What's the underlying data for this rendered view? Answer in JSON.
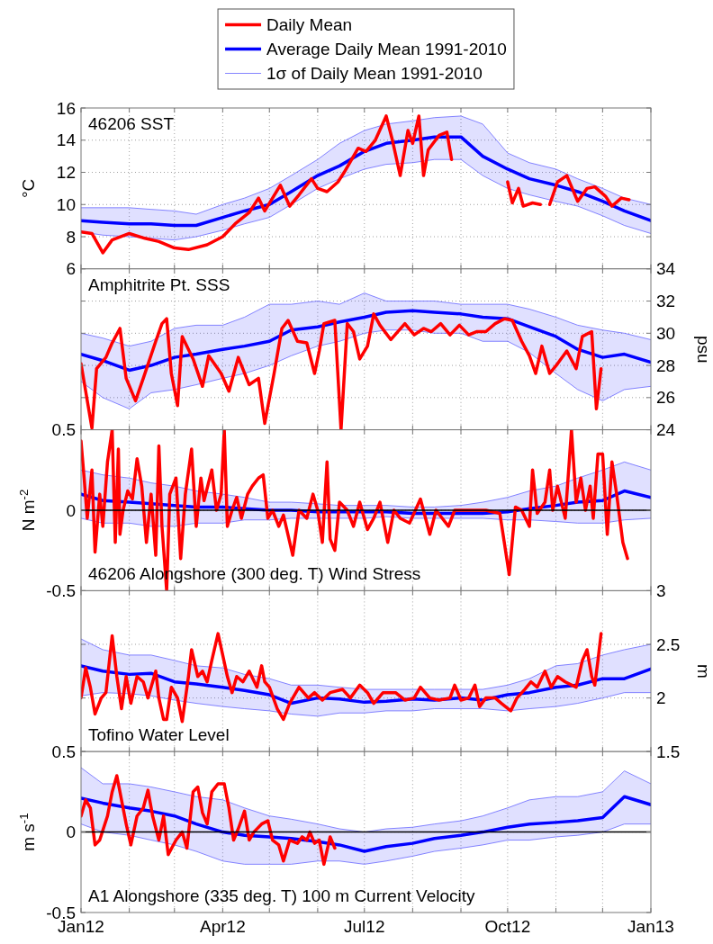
{
  "chart_data": [
    {
      "type": "line",
      "title": "46206 SST",
      "ylabel": "°C",
      "legend": "top",
      "grid": true,
      "tick_labels": "y",
      "xlim": [
        "2012-01-01",
        "2013-01-01"
      ],
      "xticks": [
        {
          "value": "2012-01-01",
          "label": null
        },
        {
          "value": "2012-02-01",
          "label": null
        },
        {
          "value": "2012-03-01",
          "label": null
        },
        {
          "value": "2012-04-01",
          "label": null
        },
        {
          "value": "2012-05-01",
          "label": null
        },
        {
          "value": "2012-06-01",
          "label": null
        },
        {
          "value": "2012-07-01",
          "label": null
        },
        {
          "value": "2012-08-01",
          "label": null
        },
        {
          "value": "2012-09-01",
          "label": null
        },
        {
          "value": "2012-10-01",
          "label": null
        },
        {
          "value": "2012-11-01",
          "label": null
        },
        {
          "value": "2012-12-01",
          "label": null
        },
        {
          "value": "2013-01-01",
          "label": null
        }
      ],
      "ylim": [
        6,
        16
      ],
      "yticks": [
        6,
        8,
        10,
        12,
        14,
        16
      ],
      "x": [
        "2012-01-01",
        "2012-01-15",
        "2012-02-01",
        "2012-02-15",
        "2012-03-01",
        "2012-03-15",
        "2012-04-01",
        "2012-04-15",
        "2012-05-01",
        "2012-05-15",
        "2012-06-01",
        "2012-06-15",
        "2012-07-01",
        "2012-07-15",
        "2012-08-01",
        "2012-08-15",
        "2012-09-01",
        "2012-09-15",
        "2012-10-01",
        "2012-10-15",
        "2012-11-01",
        "2012-11-15",
        "2012-12-01",
        "2012-12-15",
        "2013-01-01"
      ],
      "series": [
        {
          "name": "Daily Mean",
          "color": "#ff0000",
          "x": [
            "2012-01-01",
            "2012-01-08",
            "2012-01-15",
            "2012-01-21",
            "2012-02-01",
            "2012-02-11",
            "2012-02-20",
            "2012-03-01",
            "2012-03-10",
            "2012-03-22",
            "2012-04-01",
            "2012-04-09",
            "2012-04-18",
            "2012-04-24",
            "2012-04-28",
            "2012-05-08",
            "2012-05-14",
            "2012-05-20",
            "2012-05-28",
            "2012-06-01",
            "2012-06-07",
            "2012-06-14",
            "2012-06-18",
            "2012-06-27",
            "2012-07-02",
            "2012-07-08",
            "2012-07-15",
            "2012-07-19",
            "2012-07-24",
            "2012-07-29",
            "2012-08-01",
            "2012-08-05",
            "2012-08-08",
            "2012-08-11",
            "2012-08-18",
            "2012-08-23",
            "2012-08-26",
            "2012-09-15",
            "2012-10-01",
            "2012-10-04",
            "2012-10-08",
            "2012-10-11",
            "2012-10-17",
            "2012-10-22",
            "2012-10-25",
            "2012-10-28",
            "2012-11-02",
            "2012-11-08",
            "2012-11-15",
            "2012-11-21",
            "2012-11-26",
            "2012-12-03",
            "2012-12-07",
            "2012-12-13",
            "2012-12-18"
          ],
          "values": [
            8.3,
            8.2,
            7.0,
            7.8,
            8.2,
            7.9,
            7.7,
            7.3,
            7.2,
            7.5,
            8.0,
            8.8,
            9.5,
            10.4,
            9.6,
            11.2,
            9.9,
            10.6,
            11.6,
            11.0,
            10.8,
            11.4,
            12.0,
            13.5,
            13.3,
            14.0,
            15.5,
            14.0,
            11.8,
            14.6,
            13.8,
            15.5,
            11.8,
            13.4,
            14.3,
            14.5,
            12.8,
            null,
            11.4,
            10.1,
            11.0,
            9.9,
            10.1,
            10.0,
            null,
            10.0,
            11.4,
            11.8,
            10.2,
            11.0,
            11.1,
            10.5,
            9.9,
            10.4,
            10.3
          ]
        },
        {
          "name": "Average Daily Mean 1991-2010",
          "color": "#0000ff",
          "values": [
            9.0,
            8.9,
            8.8,
            8.8,
            8.7,
            8.7,
            9.2,
            9.6,
            10.0,
            10.8,
            11.8,
            12.4,
            13.3,
            13.8,
            14.0,
            14.2,
            14.2,
            13.0,
            12.2,
            11.6,
            11.2,
            10.8,
            10.2,
            9.6,
            9.0
          ],
          "upper": [
            9.8,
            9.8,
            9.8,
            9.7,
            9.6,
            9.4,
            10.0,
            10.4,
            11.0,
            11.8,
            12.8,
            13.8,
            14.6,
            15.0,
            15.2,
            15.4,
            15.5,
            15.0,
            13.2,
            12.6,
            12.2,
            11.6,
            11.0,
            10.4,
            10.0
          ],
          "lower": [
            8.3,
            8.1,
            8.0,
            7.9,
            7.8,
            8.0,
            8.4,
            8.8,
            9.2,
            10.0,
            11.0,
            11.6,
            12.2,
            12.5,
            12.6,
            12.8,
            12.8,
            11.8,
            11.0,
            10.6,
            10.2,
            9.9,
            9.3,
            8.7,
            8.2
          ]
        },
        {
          "name": "1σ of Daily Mean 1991-2010",
          "color": "#6666ff",
          "values": [
            9.8,
            9.8,
            9.8,
            9.7,
            9.6,
            9.4,
            10.0,
            10.4,
            11.0,
            11.8,
            12.8,
            13.8,
            14.6,
            15.0,
            15.2,
            15.4,
            15.5,
            15.0,
            13.2,
            12.6,
            12.2,
            11.6,
            11.0,
            10.4,
            10.0
          ]
        },
        {
          "color": "#6666ff",
          "values": [
            8.3,
            8.1,
            8.0,
            7.9,
            7.8,
            8.0,
            8.4,
            8.8,
            9.2,
            10.0,
            11.0,
            11.6,
            12.2,
            12.5,
            12.6,
            12.8,
            12.8,
            11.8,
            11.0,
            10.6,
            10.2,
            9.9,
            9.3,
            8.7,
            8.2
          ]
        }
      ]
    },
    {
      "type": "line",
      "title": "Amphitrite Pt. SSS",
      "ylabel": "psu",
      "grid": true,
      "tick_labels": "y",
      "xlim": [
        "2012-01-01",
        "2013-01-01"
      ],
      "xticks": [
        {
          "value": "2012-01-01",
          "label": null
        },
        {
          "value": "2012-02-01",
          "label": null
        },
        {
          "value": "2012-03-01",
          "label": null
        },
        {
          "value": "2012-04-01",
          "label": null
        },
        {
          "value": "2012-05-01",
          "label": null
        },
        {
          "value": "2012-06-01",
          "label": null
        },
        {
          "value": "2012-07-01",
          "label": null
        },
        {
          "value": "2012-08-01",
          "label": null
        },
        {
          "value": "2012-09-01",
          "label": null
        },
        {
          "value": "2012-10-01",
          "label": null
        },
        {
          "value": "2012-11-01",
          "label": null
        },
        {
          "value": "2012-12-01",
          "label": null
        },
        {
          "value": "2013-01-01",
          "label": null
        }
      ],
      "ylim": [
        24,
        34
      ],
      "yticks": [
        24,
        26,
        28,
        30,
        32,
        34
      ],
      "x": [
        "2012-01-01",
        "2012-01-15",
        "2012-02-01",
        "2012-02-15",
        "2012-03-01",
        "2012-03-15",
        "2012-04-01",
        "2012-04-15",
        "2012-05-01",
        "2012-05-15",
        "2012-06-01",
        "2012-06-15",
        "2012-07-01",
        "2012-07-15",
        "2012-08-01",
        "2012-08-15",
        "2012-09-01",
        "2012-09-15",
        "2012-10-01",
        "2012-10-15",
        "2012-11-01",
        "2012-11-15",
        "2012-12-01",
        "2012-12-15",
        "2013-01-01"
      ],
      "series": [
        {
          "color": "#ff0000",
          "x": [
            "2012-01-01",
            "2012-01-04",
            "2012-01-08",
            "2012-01-11",
            "2012-01-17",
            "2012-01-21",
            "2012-01-26",
            "2012-01-30",
            "2012-02-05",
            "2012-02-10",
            "2012-02-18",
            "2012-02-22",
            "2012-02-25",
            "2012-02-28",
            "2012-03-03",
            "2012-03-06",
            "2012-03-13",
            "2012-03-19",
            "2012-03-23",
            "2012-03-31",
            "2012-04-05",
            "2012-04-11",
            "2012-04-18",
            "2012-04-24",
            "2012-04-28",
            "2012-05-04",
            "2012-05-09",
            "2012-05-13",
            "2012-05-19",
            "2012-05-25",
            "2012-05-30",
            "2012-06-02",
            "2012-06-05",
            "2012-06-12",
            "2012-06-16",
            "2012-06-20",
            "2012-06-24",
            "2012-06-28",
            "2012-07-03",
            "2012-07-07",
            "2012-07-11",
            "2012-07-18",
            "2012-07-27",
            "2012-08-02",
            "2012-08-08",
            "2012-08-13",
            "2012-08-19",
            "2012-08-25",
            "2012-08-31",
            "2012-09-06",
            "2012-09-11",
            "2012-09-17",
            "2012-09-23",
            "2012-09-29",
            "2012-10-04",
            "2012-10-10",
            "2012-10-15",
            "2012-10-19",
            "2012-10-23",
            "2012-10-28",
            "2012-11-02",
            "2012-11-08",
            "2012-11-14",
            "2012-11-18",
            "2012-11-24",
            "2012-11-27",
            "2012-11-30"
          ],
          "values": [
            28.1,
            26.4,
            24.1,
            27.8,
            28.5,
            29.4,
            30.3,
            27.2,
            25.8,
            27.2,
            29.5,
            30.6,
            30.9,
            27.5,
            25.5,
            29.8,
            28.4,
            26.7,
            28.6,
            27.5,
            26.4,
            28.5,
            26.8,
            27.2,
            24.4,
            27.5,
            30.3,
            30.8,
            29.5,
            29.4,
            27.5,
            28.9,
            30.6,
            30.8,
            24.0,
            30.6,
            30.1,
            28.4,
            29.2,
            31.2,
            30.5,
            29.6,
            30.6,
            29.9,
            30.3,
            30.1,
            30.6,
            29.9,
            30.5,
            29.9,
            30.1,
            30.1,
            30.6,
            30.9,
            30.8,
            29.5,
            28.6,
            27.5,
            29.2,
            27.5,
            28.1,
            28.9,
            27.8,
            29.8,
            30.1,
            25.3,
            27.8
          ]
        },
        {
          "color": "#0000ff",
          "values": [
            28.7,
            28.3,
            27.7,
            28.0,
            28.5,
            28.7,
            29.0,
            29.2,
            29.5,
            30.2,
            30.4,
            30.7,
            31.0,
            31.3,
            31.4,
            31.3,
            31.2,
            31.0,
            30.9,
            30.4,
            29.8,
            29.0,
            28.5,
            28.7,
            28.2
          ],
          "upper": [
            30.0,
            29.7,
            29.2,
            29.5,
            30.3,
            30.5,
            30.5,
            31.0,
            31.8,
            31.8,
            32.0,
            31.8,
            32.5,
            32.0,
            32.0,
            32.0,
            31.8,
            31.8,
            31.8,
            31.5,
            31.0,
            30.5,
            30.2,
            30.0,
            29.6
          ],
          "lower": [
            27.0,
            26.0,
            25.3,
            26.3,
            26.5,
            26.8,
            27.2,
            27.5,
            28.0,
            28.6,
            29.2,
            29.5,
            30.0,
            30.2,
            30.2,
            30.0,
            30.0,
            29.5,
            29.5,
            28.8,
            27.5,
            26.5,
            25.8,
            26.5,
            26.7
          ]
        },
        {
          "color": "#6666ff",
          "values": [
            30.0,
            29.7,
            29.2,
            29.5,
            30.3,
            30.5,
            30.5,
            31.0,
            31.8,
            31.8,
            32.0,
            31.8,
            32.5,
            32.0,
            32.0,
            32.0,
            31.8,
            31.8,
            31.8,
            31.5,
            31.0,
            30.5,
            30.2,
            30.0,
            29.6
          ]
        },
        {
          "color": "#6666ff",
          "values": [
            27.0,
            26.0,
            25.3,
            26.3,
            26.5,
            26.8,
            27.2,
            27.5,
            28.0,
            28.6,
            29.2,
            29.5,
            30.0,
            30.2,
            30.2,
            30.0,
            30.0,
            29.5,
            29.5,
            28.8,
            27.5,
            26.5,
            25.8,
            26.5,
            26.7
          ]
        }
      ]
    },
    {
      "type": "line",
      "title": "46206 Alongshore (300 deg. T) Wind Stress",
      "ylabel": "N m$^{-2}$",
      "grid": true,
      "tick_labels": "y",
      "xlim": [
        "2012-01-01",
        "2013-01-01"
      ],
      "xticks": [
        {
          "value": "2012-01-01",
          "label": null
        },
        {
          "value": "2012-02-01",
          "label": null
        },
        {
          "value": "2012-03-01",
          "label": null
        },
        {
          "value": "2012-04-01",
          "label": null
        },
        {
          "value": "2012-05-01",
          "label": null
        },
        {
          "value": "2012-06-01",
          "label": null
        },
        {
          "value": "2012-07-01",
          "label": null
        },
        {
          "value": "2012-08-01",
          "label": null
        },
        {
          "value": "2012-09-01",
          "label": null
        },
        {
          "value": "2012-10-01",
          "label": null
        },
        {
          "value": "2012-11-01",
          "label": null
        },
        {
          "value": "2012-12-01",
          "label": null
        },
        {
          "value": "2013-01-01",
          "label": null
        }
      ],
      "ylim": [
        -0.5,
        0.5
      ],
      "yticks": [
        -0.5,
        0,
        0.5
      ],
      "ref_lines": [
        {
          "axis": "y",
          "value": 0,
          "color": "#000000"
        }
      ],
      "x": [
        "2012-01-01",
        "2012-01-15",
        "2012-02-01",
        "2012-02-15",
        "2012-03-01",
        "2012-03-15",
        "2012-04-01",
        "2012-04-15",
        "2012-05-01",
        "2012-05-15",
        "2012-06-01",
        "2012-06-15",
        "2012-07-01",
        "2012-07-15",
        "2012-08-01",
        "2012-08-15",
        "2012-09-01",
        "2012-09-15",
        "2012-10-01",
        "2012-10-15",
        "2012-11-01",
        "2012-11-15",
        "2012-12-01",
        "2012-12-15",
        "2013-01-01"
      ],
      "series": [
        {
          "color": "#ff0000",
          "x": [
            "2012-01-01",
            "2012-01-03",
            "2012-01-05",
            "2012-01-08",
            "2012-01-10",
            "2012-01-13",
            "2012-01-15",
            "2012-01-18",
            "2012-01-21",
            "2012-01-23",
            "2012-01-25",
            "2012-01-26",
            "2012-01-28",
            "2012-01-31",
            "2012-02-03",
            "2012-02-06",
            "2012-02-09",
            "2012-02-12",
            "2012-02-15",
            "2012-02-18",
            "2012-02-20",
            "2012-02-22",
            "2012-02-25",
            "2012-02-27",
            "2012-03-02",
            "2012-03-05",
            "2012-03-08",
            "2012-03-12",
            "2012-03-15",
            "2012-03-18",
            "2012-03-20",
            "2012-03-25",
            "2012-03-28",
            "2012-03-31",
            "2012-04-02",
            "2012-04-04",
            "2012-04-07",
            "2012-04-10",
            "2012-04-13",
            "2012-04-17",
            "2012-04-20",
            "2012-04-24",
            "2012-04-27",
            "2012-04-30",
            "2012-05-03",
            "2012-05-07",
            "2012-05-10",
            "2012-05-16",
            "2012-05-20",
            "2012-05-25",
            "2012-05-29",
            "2012-06-01",
            "2012-06-04",
            "2012-06-07",
            "2012-06-09",
            "2012-06-12",
            "2012-06-15",
            "2012-06-20",
            "2012-06-24",
            "2012-06-28",
            "2012-07-03",
            "2012-07-07",
            "2012-07-11",
            "2012-07-16",
            "2012-07-20",
            "2012-07-24",
            "2012-07-30",
            "2012-08-06",
            "2012-08-12",
            "2012-08-16",
            "2012-08-24",
            "2012-08-28",
            "2012-09-06",
            "2012-09-17",
            "2012-09-26",
            "2012-10-02",
            "2012-10-06",
            "2012-10-10",
            "2012-10-15",
            "2012-10-17",
            "2012-10-20",
            "2012-10-25",
            "2012-10-28",
            "2012-10-30",
            "2012-11-02",
            "2012-11-07",
            "2012-11-11",
            "2012-11-14",
            "2012-11-17",
            "2012-11-20",
            "2012-11-23",
            "2012-11-25",
            "2012-11-28",
            "2012-12-01",
            "2012-12-04",
            "2012-12-07",
            "2012-12-10",
            "2012-12-14",
            "2012-12-17"
          ],
          "values": [
            0.43,
            0.2,
            -0.05,
            0.25,
            -0.26,
            0.1,
            -0.1,
            0.3,
            0.5,
            -0.2,
            0.38,
            -0.15,
            0.0,
            0.12,
            0.07,
            0.32,
            0.15,
            -0.2,
            0.1,
            -0.28,
            0.4,
            -0.1,
            -0.5,
            0.1,
            0.2,
            -0.3,
            0.1,
            0.38,
            -0.1,
            0.2,
            0.06,
            0.25,
            0.0,
            0.1,
            0.5,
            -0.1,
            0.0,
            0.08,
            -0.05,
            0.1,
            0.15,
            0.2,
            0.22,
            -0.05,
            0.0,
            -0.1,
            -0.03,
            -0.28,
            0.0,
            -0.05,
            0.1,
            0.0,
            -0.2,
            0.3,
            -0.18,
            -0.25,
            0.05,
            0.0,
            -0.1,
            0.05,
            -0.12,
            -0.05,
            0.05,
            -0.2,
            0.0,
            -0.05,
            -0.08,
            0.07,
            -0.15,
            0.0,
            -0.1,
            0.0,
            0.0,
            0.0,
            -0.02,
            -0.4,
            0.02,
            0.0,
            -0.1,
            0.25,
            -0.02,
            0.05,
            0.25,
            0.0,
            0.15,
            -0.05,
            0.5,
            0.05,
            0.2,
            0.0,
            0.15,
            -0.05,
            0.35,
            0.35,
            -0.15,
            0.3,
            0.1,
            -0.2,
            -0.3
          ]
        },
        {
          "color": "#0000ff",
          "values": [
            0.1,
            0.06,
            0.05,
            0.04,
            0.03,
            0.02,
            0.02,
            0.01,
            0.0,
            0.0,
            -0.01,
            -0.01,
            -0.01,
            -0.01,
            -0.02,
            -0.02,
            -0.02,
            -0.02,
            -0.01,
            0.01,
            0.03,
            0.05,
            0.06,
            0.12,
            0.08
          ],
          "upper": [
            0.25,
            0.22,
            0.2,
            0.17,
            0.15,
            0.12,
            0.1,
            0.08,
            0.05,
            0.05,
            0.04,
            0.03,
            0.03,
            0.03,
            0.02,
            0.02,
            0.03,
            0.05,
            0.08,
            0.12,
            0.15,
            0.2,
            0.25,
            0.3,
            0.25
          ],
          "lower": [
            -0.05,
            -0.08,
            -0.08,
            -0.1,
            -0.1,
            -0.08,
            -0.08,
            -0.06,
            -0.06,
            -0.05,
            -0.05,
            -0.05,
            -0.05,
            -0.04,
            -0.05,
            -0.05,
            -0.05,
            -0.05,
            -0.06,
            -0.06,
            -0.07,
            -0.08,
            -0.08,
            -0.06,
            -0.05
          ]
        },
        {
          "color": "#6666ff",
          "values": [
            0.25,
            0.22,
            0.2,
            0.17,
            0.15,
            0.12,
            0.1,
            0.08,
            0.05,
            0.05,
            0.04,
            0.03,
            0.03,
            0.03,
            0.02,
            0.02,
            0.03,
            0.05,
            0.08,
            0.12,
            0.15,
            0.2,
            0.25,
            0.3,
            0.25
          ]
        },
        {
          "color": "#6666ff",
          "values": [
            -0.05,
            -0.08,
            -0.08,
            -0.1,
            -0.1,
            -0.08,
            -0.08,
            -0.06,
            -0.06,
            -0.05,
            -0.05,
            -0.05,
            -0.05,
            -0.04,
            -0.05,
            -0.05,
            -0.05,
            -0.05,
            -0.06,
            -0.06,
            -0.07,
            -0.08,
            -0.08,
            -0.06,
            -0.05
          ]
        }
      ]
    },
    {
      "type": "line",
      "title": "Tofino Water Level",
      "ylabel": "m",
      "grid": true,
      "tick_labels": "y",
      "xlim": [
        "2012-01-01",
        "2013-01-01"
      ],
      "xticks": [
        {
          "value": "2012-01-01",
          "label": null
        },
        {
          "value": "2012-02-01",
          "label": null
        },
        {
          "value": "2012-03-01",
          "label": null
        },
        {
          "value": "2012-04-01",
          "label": null
        },
        {
          "value": "2012-05-01",
          "label": null
        },
        {
          "value": "2012-06-01",
          "label": null
        },
        {
          "value": "2012-07-01",
          "label": null
        },
        {
          "value": "2012-08-01",
          "label": null
        },
        {
          "value": "2012-09-01",
          "label": null
        },
        {
          "value": "2012-10-01",
          "label": null
        },
        {
          "value": "2012-11-01",
          "label": null
        },
        {
          "value": "2012-12-01",
          "label": null
        },
        {
          "value": "2013-01-01",
          "label": null
        }
      ],
      "ylim": [
        1.5,
        3
      ],
      "yticks": [
        1.5,
        2,
        2.5,
        3
      ],
      "x": [
        "2012-01-01",
        "2012-01-15",
        "2012-02-01",
        "2012-02-15",
        "2012-03-01",
        "2012-03-15",
        "2012-04-01",
        "2012-04-15",
        "2012-05-01",
        "2012-05-15",
        "2012-06-01",
        "2012-06-15",
        "2012-07-01",
        "2012-07-15",
        "2012-08-01",
        "2012-08-15",
        "2012-09-01",
        "2012-09-15",
        "2012-10-01",
        "2012-10-15",
        "2012-11-01",
        "2012-11-15",
        "2012-12-01",
        "2012-12-15",
        "2013-01-01"
      ],
      "series": [
        {
          "color": "#ff0000",
          "x": [
            "2012-01-01",
            "2012-01-04",
            "2012-01-07",
            "2012-01-10",
            "2012-01-14",
            "2012-01-17",
            "2012-01-21",
            "2012-01-24",
            "2012-01-27",
            "2012-01-30",
            "2012-02-02",
            "2012-02-06",
            "2012-02-10",
            "2012-02-13",
            "2012-02-18",
            "2012-02-20",
            "2012-02-23",
            "2012-02-25",
            "2012-02-28",
            "2012-03-03",
            "2012-03-06",
            "2012-03-10",
            "2012-03-12",
            "2012-03-16",
            "2012-03-19",
            "2012-03-22",
            "2012-03-25",
            "2012-03-29",
            "2012-04-01",
            "2012-04-04",
            "2012-04-07",
            "2012-04-10",
            "2012-04-14",
            "2012-04-18",
            "2012-04-23",
            "2012-04-26",
            "2012-04-28",
            "2012-05-01",
            "2012-05-06",
            "2012-05-10",
            "2012-05-14",
            "2012-05-20",
            "2012-05-26",
            "2012-05-30",
            "2012-06-04",
            "2012-06-09",
            "2012-06-17",
            "2012-06-22",
            "2012-06-28",
            "2012-07-03",
            "2012-07-07",
            "2012-07-13",
            "2012-07-21",
            "2012-07-27",
            "2012-08-02",
            "2012-08-06",
            "2012-08-12",
            "2012-08-18",
            "2012-08-25",
            "2012-08-28",
            "2012-09-01",
            "2012-09-06",
            "2012-09-10",
            "2012-09-13",
            "2012-09-17",
            "2012-09-23",
            "2012-09-27",
            "2012-10-03",
            "2012-10-07",
            "2012-10-12",
            "2012-10-16",
            "2012-10-20",
            "2012-10-25",
            "2012-10-29",
            "2012-11-02",
            "2012-11-07",
            "2012-11-14",
            "2012-11-18",
            "2012-11-21",
            "2012-11-24",
            "2012-11-26",
            "2012-11-28",
            "2012-11-30"
          ],
          "values": [
            2.0,
            2.28,
            2.1,
            1.85,
            2.0,
            2.05,
            2.58,
            2.2,
            1.9,
            2.2,
            1.95,
            2.2,
            2.15,
            2.0,
            2.25,
            2.0,
            1.8,
            1.8,
            2.1,
            2.0,
            1.78,
            2.2,
            2.45,
            2.2,
            2.25,
            2.15,
            2.35,
            2.6,
            2.4,
            2.2,
            2.05,
            2.2,
            2.15,
            2.25,
            2.1,
            2.3,
            2.15,
            2.1,
            1.9,
            1.8,
            1.95,
            2.1,
            2.0,
            2.05,
            1.98,
            2.05,
            2.08,
            2.0,
            2.12,
            2.05,
            1.95,
            2.05,
            2.05,
            1.98,
            2.0,
            2.1,
            2.0,
            1.98,
            2.0,
            2.12,
            1.98,
            2.0,
            2.12,
            1.92,
            2.0,
            2.0,
            1.95,
            1.88,
            2.0,
            2.08,
            2.15,
            2.1,
            2.25,
            2.1,
            2.2,
            2.15,
            2.1,
            2.35,
            2.45,
            2.2,
            2.12,
            2.35,
            2.6
          ]
        },
        {
          "color": "#0000ff",
          "values": [
            2.3,
            2.25,
            2.22,
            2.23,
            2.15,
            2.13,
            2.1,
            2.07,
            2.03,
            1.95,
            2.0,
            1.99,
            1.96,
            1.97,
            1.99,
            1.98,
            2.0,
            1.98,
            2.03,
            2.05,
            2.1,
            2.12,
            2.18,
            2.18,
            2.27
          ],
          "upper": [
            2.55,
            2.45,
            2.4,
            2.4,
            2.35,
            2.3,
            2.28,
            2.22,
            2.18,
            2.12,
            2.12,
            2.1,
            2.08,
            2.08,
            2.08,
            2.08,
            2.08,
            2.08,
            2.12,
            2.18,
            2.3,
            2.32,
            2.4,
            2.45,
            2.5
          ],
          "lower": [
            2.02,
            2.05,
            2.04,
            2.02,
            1.98,
            1.95,
            1.92,
            1.9,
            1.88,
            1.85,
            1.83,
            1.86,
            1.86,
            1.88,
            1.88,
            1.9,
            1.9,
            1.9,
            1.88,
            1.9,
            1.92,
            1.95,
            2.0,
            2.05,
            2.05
          ]
        },
        {
          "color": "#6666ff",
          "values": [
            2.55,
            2.45,
            2.4,
            2.4,
            2.35,
            2.3,
            2.28,
            2.22,
            2.18,
            2.12,
            2.12,
            2.1,
            2.08,
            2.08,
            2.08,
            2.08,
            2.08,
            2.08,
            2.12,
            2.18,
            2.3,
            2.32,
            2.4,
            2.45,
            2.5
          ]
        },
        {
          "color": "#6666ff",
          "values": [
            2.02,
            2.05,
            2.04,
            2.02,
            1.98,
            1.95,
            1.92,
            1.9,
            1.88,
            1.85,
            1.83,
            1.86,
            1.86,
            1.88,
            1.88,
            1.9,
            1.9,
            1.9,
            1.88,
            1.9,
            1.92,
            1.95,
            2.0,
            2.05,
            2.05
          ]
        }
      ]
    },
    {
      "type": "line",
      "title": "A1 Alongshore (335 deg. T) 100 m Current Velocity",
      "ylabel": "m s$^{-1}$",
      "grid": true,
      "xlim": [
        "2012-01-01",
        "2013-01-01"
      ],
      "xticks": [
        {
          "value": "2012-01-01",
          "label": "Jan12"
        },
        {
          "value": "2012-02-01",
          "label": null
        },
        {
          "value": "2012-03-01",
          "label": null
        },
        {
          "value": "2012-04-01",
          "label": "Apr12"
        },
        {
          "value": "2012-05-01",
          "label": null
        },
        {
          "value": "2012-06-01",
          "label": null
        },
        {
          "value": "2012-07-01",
          "label": "Jul12"
        },
        {
          "value": "2012-08-01",
          "label": null
        },
        {
          "value": "2012-09-01",
          "label": null
        },
        {
          "value": "2012-10-01",
          "label": "Oct12"
        },
        {
          "value": "2012-11-01",
          "label": null
        },
        {
          "value": "2012-12-01",
          "label": null
        },
        {
          "value": "2013-01-01",
          "label": "Jan13"
        }
      ],
      "ylim": [
        -0.5,
        0.5
      ],
      "yticks": [
        -0.5,
        0,
        0.5
      ],
      "ref_lines": [
        {
          "axis": "y",
          "value": 0,
          "color": "#000000"
        }
      ],
      "x": [
        "2012-01-01",
        "2012-01-15",
        "2012-02-01",
        "2012-02-15",
        "2012-03-01",
        "2012-03-15",
        "2012-04-01",
        "2012-04-15",
        "2012-05-01",
        "2012-05-15",
        "2012-06-01",
        "2012-06-15",
        "2012-07-01",
        "2012-07-15",
        "2012-08-01",
        "2012-08-15",
        "2012-09-01",
        "2012-09-15",
        "2012-10-01",
        "2012-10-15",
        "2012-11-01",
        "2012-11-15",
        "2012-12-01",
        "2012-12-15",
        "2013-01-01"
      ],
      "series": [
        {
          "color": "#ff0000",
          "x": [
            "2012-01-01",
            "2012-01-04",
            "2012-01-07",
            "2012-01-10",
            "2012-01-13",
            "2012-01-18",
            "2012-01-21",
            "2012-01-24",
            "2012-01-27",
            "2012-01-30",
            "2012-02-02",
            "2012-02-06",
            "2012-02-10",
            "2012-02-13",
            "2012-02-16",
            "2012-02-20",
            "2012-02-23",
            "2012-02-26",
            "2012-03-02",
            "2012-03-06",
            "2012-03-09",
            "2012-03-13",
            "2012-03-16",
            "2012-03-19",
            "2012-03-22",
            "2012-03-25",
            "2012-03-29",
            "2012-04-02",
            "2012-04-05",
            "2012-04-08",
            "2012-04-11",
            "2012-04-15",
            "2012-04-18",
            "2012-04-21",
            "2012-04-26",
            "2012-04-30",
            "2012-05-03",
            "2012-05-07",
            "2012-05-10",
            "2012-05-14",
            "2012-05-19",
            "2012-05-22",
            "2012-05-25",
            "2012-05-27",
            "2012-05-30",
            "2012-06-02",
            "2012-06-05",
            "2012-06-09",
            "2012-06-12"
          ],
          "values": [
            0.1,
            0.2,
            0.15,
            -0.08,
            -0.05,
            0.1,
            0.25,
            0.35,
            0.2,
            0.05,
            -0.08,
            0.1,
            0.15,
            0.26,
            0.1,
            -0.05,
            0.1,
            -0.14,
            -0.05,
            0.0,
            -0.1,
            0.25,
            0.28,
            0.12,
            0.05,
            0.25,
            0.3,
            0.3,
            0.15,
            -0.05,
            0.02,
            0.13,
            -0.05,
            0.0,
            0.05,
            0.07,
            -0.05,
            -0.08,
            -0.18,
            -0.05,
            -0.07,
            -0.03,
            -0.05,
            0.0,
            -0.07,
            -0.05,
            -0.2,
            -0.03,
            -0.1
          ]
        },
        {
          "color": "#0000ff",
          "values": [
            0.21,
            0.18,
            0.15,
            0.13,
            0.1,
            0.05,
            0.0,
            -0.02,
            -0.03,
            -0.04,
            -0.06,
            -0.08,
            -0.12,
            -0.09,
            -0.07,
            -0.04,
            -0.02,
            0.0,
            0.03,
            0.05,
            0.06,
            0.07,
            0.09,
            0.22,
            0.17
          ],
          "upper": [
            0.4,
            0.3,
            0.3,
            0.28,
            0.25,
            0.22,
            0.2,
            0.15,
            0.1,
            0.08,
            0.05,
            0.02,
            0.0,
            0.02,
            0.03,
            0.05,
            0.07,
            0.1,
            0.15,
            0.2,
            0.22,
            0.22,
            0.25,
            0.38,
            0.3
          ],
          "lower": [
            0.05,
            0.0,
            -0.02,
            -0.05,
            -0.08,
            -0.12,
            -0.18,
            -0.2,
            -0.2,
            -0.2,
            -0.18,
            -0.18,
            -0.2,
            -0.18,
            -0.15,
            -0.12,
            -0.1,
            -0.08,
            -0.05,
            -0.05,
            -0.03,
            -0.02,
            0.0,
            0.05,
            0.05
          ]
        },
        {
          "color": "#6666ff",
          "values": [
            0.4,
            0.3,
            0.3,
            0.28,
            0.25,
            0.22,
            0.2,
            0.15,
            0.1,
            0.08,
            0.05,
            0.02,
            0.0,
            0.02,
            0.03,
            0.05,
            0.07,
            0.1,
            0.15,
            0.2,
            0.22,
            0.22,
            0.25,
            0.38,
            0.3
          ]
        },
        {
          "color": "#6666ff",
          "values": [
            0.05,
            0.0,
            -0.02,
            -0.05,
            -0.08,
            -0.12,
            -0.18,
            -0.2,
            -0.2,
            -0.2,
            -0.18,
            -0.18,
            -0.2,
            -0.18,
            -0.15,
            -0.12,
            -0.1,
            -0.08,
            -0.05,
            -0.05,
            -0.03,
            -0.02,
            0.0,
            0.05,
            0.05
          ]
        }
      ]
    }
  ]
}
